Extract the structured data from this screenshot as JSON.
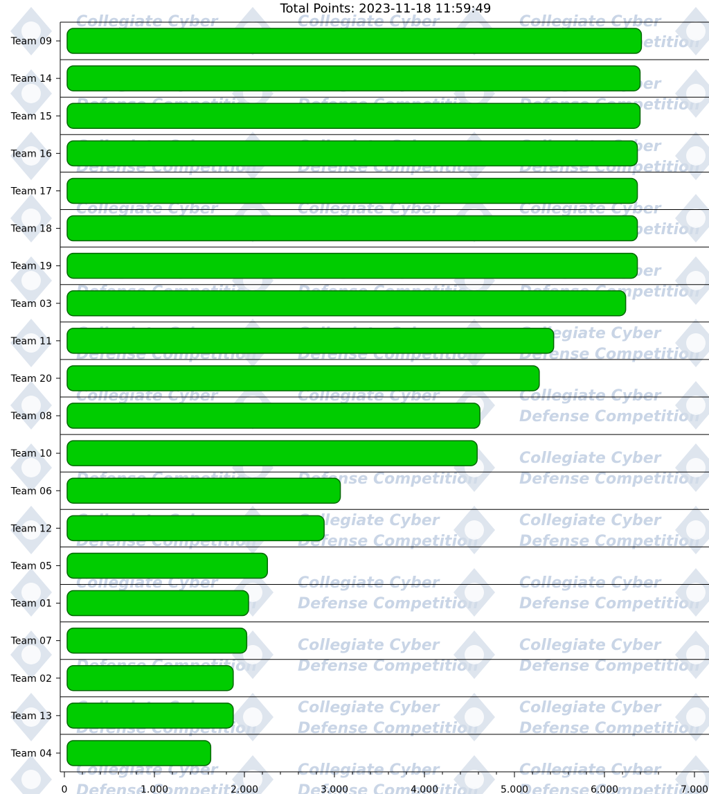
{
  "chart_data": {
    "type": "bar",
    "orientation": "horizontal",
    "title": "Total Points: 2023-11-18 11:59:49",
    "categories": [
      "Team 09",
      "Team 14",
      "Team 15",
      "Team 16",
      "Team 17",
      "Team 18",
      "Team 19",
      "Team 03",
      "Team 11",
      "Team 20",
      "Team 08",
      "Team 10",
      "Team 06",
      "Team 12",
      "Team 05",
      "Team 01",
      "Team 07",
      "Team 02",
      "Team 13",
      "Team 04"
    ],
    "values": [
      6380,
      6365,
      6365,
      6335,
      6335,
      6335,
      6335,
      6205,
      5405,
      5245,
      4585,
      4555,
      3035,
      2855,
      2225,
      2015,
      1995,
      1845,
      1845,
      1595
    ],
    "xlim": [
      0,
      7000
    ],
    "xticks": [
      0,
      1000,
      2000,
      3000,
      4000,
      5000,
      6000,
      7000
    ],
    "xtick_labels": [
      "0",
      "1.000",
      "2.000",
      "3.000",
      "4.000",
      "5.000",
      "6.000",
      "7.000"
    ],
    "bar_color": "#00cc00",
    "bar_edge_color": "#006600",
    "grid": "horizontal separators between rows",
    "xlabel": "",
    "ylabel": ""
  },
  "watermark": {
    "line1": "Collegiate Cyber",
    "line2": "Defense Competition"
  }
}
